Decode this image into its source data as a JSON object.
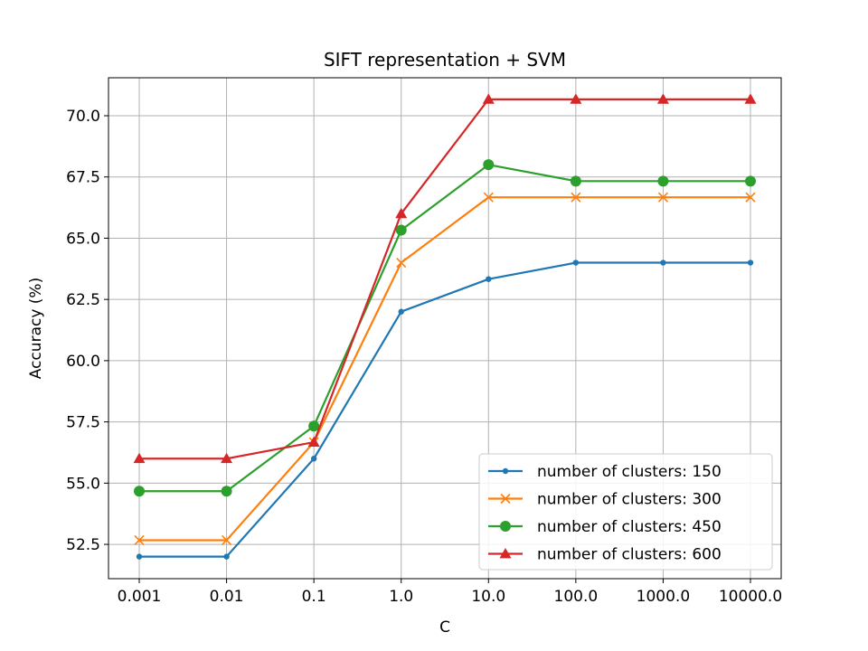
{
  "chart_data": {
    "type": "line",
    "title": "SIFT representation + SVM",
    "xlabel": "C",
    "ylabel": "Accuracy (%)",
    "categories": [
      "0.001",
      "0.01",
      "0.1",
      "1.0",
      "10.0",
      "100.0",
      "1000.0",
      "10000.0"
    ],
    "ylim": [
      51.1,
      71.55
    ],
    "yticks": [
      52.5,
      55.0,
      57.5,
      60.0,
      62.5,
      65.0,
      67.5,
      70.0
    ],
    "ytick_labels": [
      "52.5",
      "55.0",
      "57.5",
      "60.0",
      "62.5",
      "65.0",
      "67.5",
      "70.0"
    ],
    "grid": true,
    "legend_position": "lower-right",
    "series": [
      {
        "name": "number of clusters: 150",
        "color": "#1f77b4",
        "marker": "point",
        "values": [
          52.0,
          52.0,
          56.0,
          62.0,
          63.33,
          64.0,
          64.0,
          64.0
        ]
      },
      {
        "name": "number of clusters: 300",
        "color": "#ff7f0e",
        "marker": "x",
        "values": [
          52.67,
          52.67,
          56.67,
          64.0,
          66.67,
          66.67,
          66.67,
          66.67
        ]
      },
      {
        "name": "number of clusters: 450",
        "color": "#2ca02c",
        "marker": "circle",
        "values": [
          54.67,
          54.67,
          57.33,
          65.33,
          68.0,
          67.33,
          67.33,
          67.33
        ]
      },
      {
        "name": "number of clusters: 600",
        "color": "#d62728",
        "marker": "triangle",
        "values": [
          56.0,
          56.0,
          56.67,
          66.0,
          70.67,
          70.67,
          70.67,
          70.67
        ]
      }
    ]
  }
}
